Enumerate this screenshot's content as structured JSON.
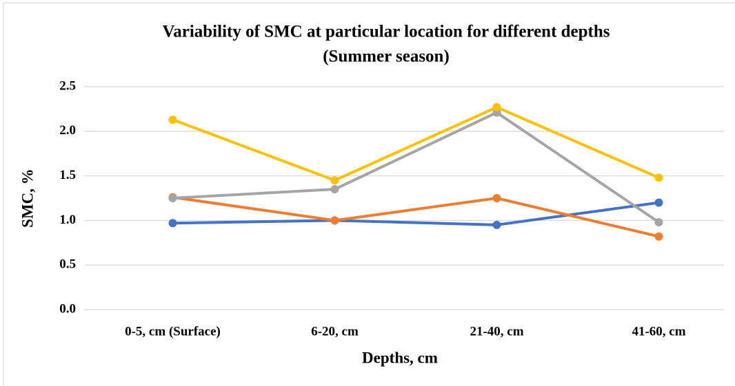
{
  "chart_data": {
    "type": "line",
    "title": [
      "Variability of SMC at particular location for different depths",
      "(Summer season)"
    ],
    "x_label": "Depths, cm",
    "y_label": "SMC, %",
    "categories": [
      "0-5, cm (Surface)",
      "6-20, cm",
      "21-40, cm",
      "41-60, cm"
    ],
    "series": [
      {
        "color": "#4472c4",
        "values": [
          0.97,
          1.0,
          0.95,
          1.2
        ]
      },
      {
        "color": "#ed7d31",
        "values": [
          1.26,
          1.0,
          1.25,
          0.82
        ]
      },
      {
        "color": "#a5a5a5",
        "values": [
          1.25,
          1.35,
          2.21,
          0.98
        ]
      },
      {
        "color": "#ffc000",
        "values": [
          2.13,
          1.45,
          2.27,
          1.48
        ]
      }
    ],
    "ylim": [
      0,
      2.5
    ],
    "yticks": [
      {
        "value": 0,
        "label": "0.0"
      },
      0.5,
      {
        "value": 1,
        "label": "1.0"
      },
      1.5,
      {
        "value": 2,
        "label": "2.0"
      },
      2.5
    ],
    "grid": true
  }
}
